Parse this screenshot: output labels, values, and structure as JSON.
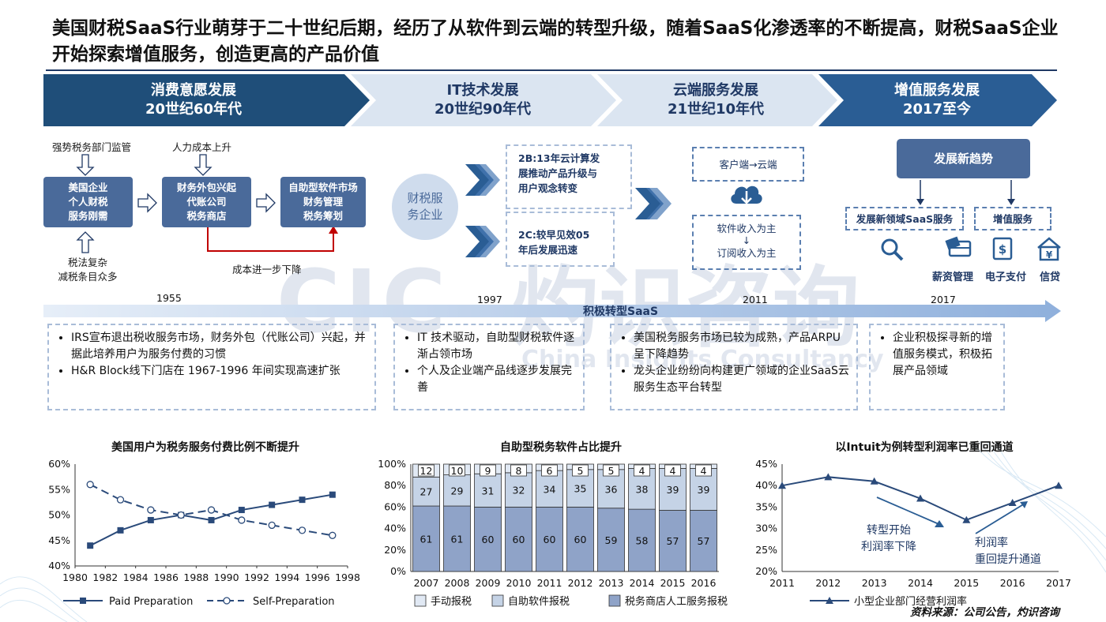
{
  "headline": "美国财税SaaS行业萌芽于二十世纪后期，经历了从软件到云端的转型升级，随着SaaS化渗透率的不断提高，财税SaaS企业开始探索增值服务，创造更高的产品价值",
  "stages": [
    {
      "title": "消费意愿发展",
      "period": "20世纪60年代"
    },
    {
      "title": "IT技术发展",
      "period": "20世纪90年代"
    },
    {
      "title": "云端服务发展",
      "period": "21世纪10年代"
    },
    {
      "title": "增值服务发展",
      "period": "2017至今"
    }
  ],
  "stage1": {
    "top_label1": "强势税务部门监管",
    "top_label2": "人力成本上升",
    "box1": "美国企业\n个人财税\n服务刚需",
    "box2": "财务外包兴起\n代账公司\n税务商店",
    "box3": "自助型软件市场\n财务管理\n税务筹划",
    "bottom_label": "税法复杂\n减税条目众多",
    "cost_label": "成本进一步下降"
  },
  "stage2": {
    "circle": "财税服\n务企业",
    "box_2b": "2B:13年云计算发\n展推动产品升级与\n用户观念转变",
    "box_2c": "2C:较早见效05\n年后发展迅速"
  },
  "stage3": {
    "box_top": "客户端→云端",
    "box_bottom_1": "软件收入为主",
    "box_bottom_arrow": "↓",
    "box_bottom_2": "订阅收入为主"
  },
  "stage4": {
    "trend": "发展新趋势",
    "item1": "发展新领域SaaS服务",
    "item2": "增值服务",
    "icons_label1": "薪资管理",
    "icons_label2": "电子支付",
    "icons_label3": "信贷"
  },
  "timeline": {
    "years": [
      "1955",
      "1997",
      "2011",
      "2017"
    ],
    "arrow_label": "积极转型SaaS"
  },
  "descriptions": [
    [
      "IRS宣布退出税收服务市场，财务外包（代账公司）兴起，并据此培养用户为服务付费的习惯",
      "H&R Block线下门店在 1967-1996 年间实现高速扩张"
    ],
    [
      "IT 技术驱动，自助型财税软件逐渐占领市场",
      "个人及企业端产品线逐步发展完善"
    ],
    [
      "美国税务服务市场已较为成熟，产品ARPU呈下降趋势",
      "龙头企业纷纷向构建更广领域的企业SaaS云服务生态平台转型"
    ],
    [
      "企业积极探寻新的增值服务模式，积极拓展产品领域"
    ]
  ],
  "watermark": {
    "logo": "CIC",
    "cn": "灼识咨询",
    "en": "China Insights Consultancy"
  },
  "source": "资料来源：公司公告，灼识咨询",
  "colors": {
    "navy": "#1f3864",
    "mid": "#4a6a9a",
    "light": "#dbe5f1",
    "arrow": "#c00000"
  },
  "chart_data": [
    {
      "type": "line",
      "title": "美国用户为税务服务付费比例不断提升",
      "x": [
        1981,
        1983,
        1985,
        1987,
        1989,
        1991,
        1993,
        1995,
        1997
      ],
      "series": [
        {
          "name": "Paid Preparation",
          "values": [
            44,
            47,
            49,
            50,
            49,
            51,
            52,
            53,
            54
          ]
        },
        {
          "name": "Self-Preparation",
          "values": [
            56,
            53,
            51,
            50,
            51,
            49,
            48,
            47,
            46
          ]
        }
      ],
      "xticks": [
        "1980",
        "1982",
        "1984",
        "1986",
        "1988",
        "1990",
        "1992",
        "1994",
        "1996",
        "1998"
      ],
      "yticks": [
        "40%",
        "45%",
        "50%",
        "55%",
        "60%"
      ],
      "ylim": [
        40,
        60
      ],
      "xlim": [
        1980,
        1998
      ]
    },
    {
      "type": "bar",
      "title": "自助型税务软件占比提升",
      "categories": [
        "2007",
        "2008",
        "2009",
        "2010",
        "2011",
        "2012",
        "2013",
        "2014",
        "2015",
        "2016"
      ],
      "series": [
        {
          "name": "税务商店人工服务报税",
          "values": [
            61,
            61,
            60,
            60,
            60,
            60,
            59,
            58,
            57,
            57
          ]
        },
        {
          "name": "自助软件报税",
          "values": [
            27,
            29,
            31,
            32,
            34,
            35,
            36,
            38,
            39,
            39
          ]
        },
        {
          "name": "手动报税",
          "values": [
            12,
            10,
            9,
            8,
            6,
            5,
            5,
            4,
            4,
            4
          ]
        }
      ],
      "legend_order": [
        "手动报税",
        "自助软件报税",
        "税务商店人工服务报税"
      ],
      "yticks": [
        "0%",
        "20%",
        "40%",
        "60%",
        "80%",
        "100%"
      ],
      "ylim": [
        0,
        100
      ]
    },
    {
      "type": "line",
      "title": "以Intuit为例转型利润率已重回通道",
      "categories": [
        "2011",
        "2012",
        "2013",
        "2014",
        "2015",
        "2016",
        "2017"
      ],
      "series": [
        {
          "name": "小型企业部门经营利润率",
          "values": [
            40,
            42,
            41,
            37,
            32,
            36,
            40
          ]
        }
      ],
      "yticks": [
        "20%",
        "25%",
        "30%",
        "35%",
        "40%",
        "45%"
      ],
      "ylim": [
        20,
        45
      ],
      "annotations": [
        "转型开始\n利润率下降",
        "利润率\n重回提升通道"
      ]
    }
  ]
}
